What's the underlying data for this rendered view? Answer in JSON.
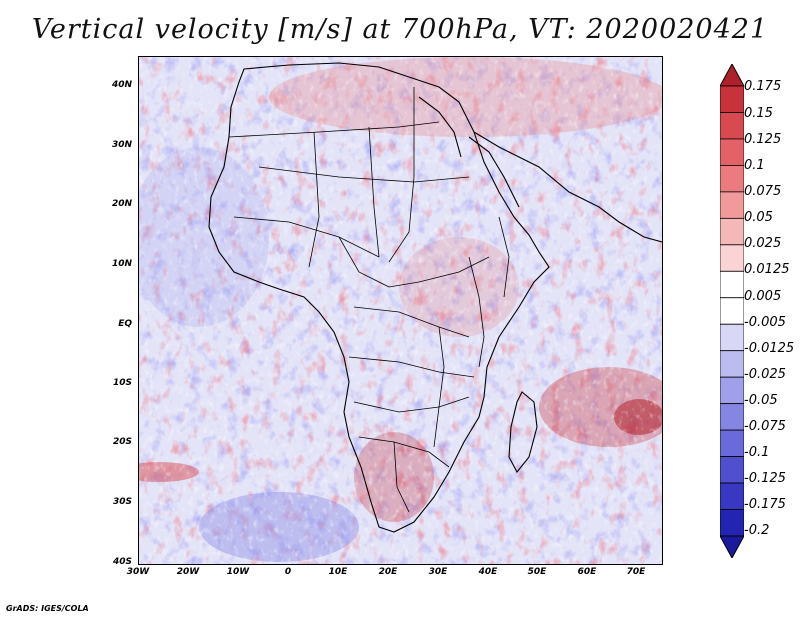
{
  "title": "Vertical velocity [m/s] at 700hPa, VT: 2020020421",
  "footer": "GrADS: IGES/COLA",
  "map": {
    "region": "Africa",
    "lat_labels": [
      "40N",
      "30N",
      "20N",
      "10N",
      "EQ",
      "10S",
      "20S",
      "30S",
      "40S"
    ],
    "lon_labels": [
      "30W",
      "20W",
      "10W",
      "0",
      "10E",
      "20E",
      "30E",
      "40E",
      "50E",
      "60E",
      "70E"
    ]
  },
  "colorbar": {
    "labels": [
      "0.175",
      "0.15",
      "0.125",
      "0.1",
      "0.075",
      "0.05",
      "0.025",
      "0.0125",
      "0.005",
      "-0.005",
      "-0.0125",
      "-0.025",
      "-0.05",
      "-0.075",
      "-0.1",
      "-0.125",
      "-0.175",
      "-0.2"
    ],
    "colors": [
      "#b0202a",
      "#c8323a",
      "#d94a50",
      "#e26268",
      "#ea7c80",
      "#f09a9c",
      "#f5b8b9",
      "#fad4d5",
      "#ffffff",
      "#ffffff",
      "#d8d8f6",
      "#bcbcf0",
      "#a0a0ea",
      "#8585e2",
      "#6a6ad9",
      "#5050cf",
      "#3838c2",
      "#2424b2",
      "#1a1aa0"
    ]
  }
}
